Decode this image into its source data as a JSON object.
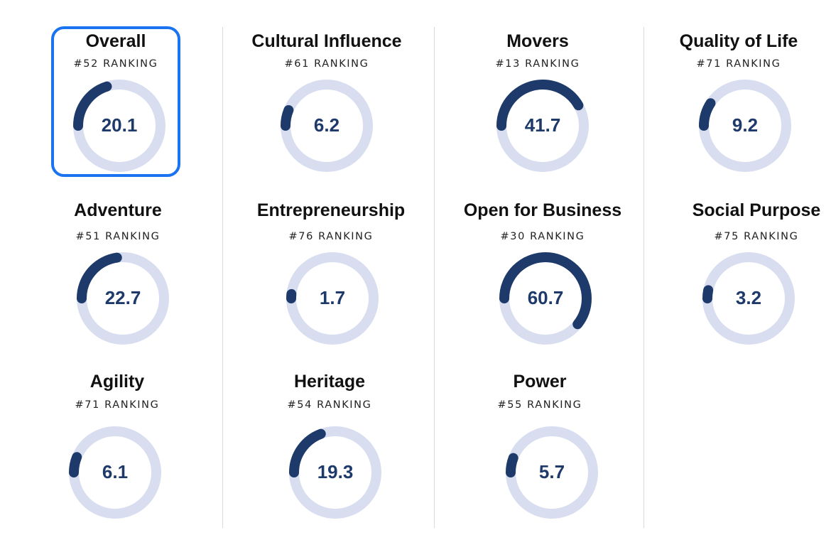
{
  "colors": {
    "track": "#d8deef",
    "progress": "#1e3a6b",
    "selected_border": "#1a73f0"
  },
  "metrics": [
    {
      "name": "Overall",
      "rank": "#52 RANKING",
      "score": "20.1",
      "fraction": 0.201,
      "selected": true
    },
    {
      "name": "Cultural Influence",
      "rank": "#61 RANKING",
      "score": "6.2",
      "fraction": 0.062
    },
    {
      "name": "Movers",
      "rank": "#13 RANKING",
      "score": "41.7",
      "fraction": 0.417
    },
    {
      "name": "Quality of Life",
      "rank": "#71 RANKING",
      "score": "9.2",
      "fraction": 0.092
    },
    {
      "name": "Adventure",
      "rank": "#51 RANKING",
      "score": "22.7",
      "fraction": 0.227
    },
    {
      "name": "Entrepreneurship",
      "rank": "#76 RANKING",
      "score": "1.7",
      "fraction": 0.017
    },
    {
      "name": "Open for Business",
      "rank": "#30 RANKING",
      "score": "60.7",
      "fraction": 0.607
    },
    {
      "name": "Social Purpose",
      "rank": "#75 RANKING",
      "score": "3.2",
      "fraction": 0.032
    },
    {
      "name": "Agility",
      "rank": "#71 RANKING",
      "score": "6.1",
      "fraction": 0.061
    },
    {
      "name": "Heritage",
      "rank": "#54 RANKING",
      "score": "19.3",
      "fraction": 0.193
    },
    {
      "name": "Power",
      "rank": "#55 RANKING",
      "score": "5.7",
      "fraction": 0.057
    }
  ]
}
